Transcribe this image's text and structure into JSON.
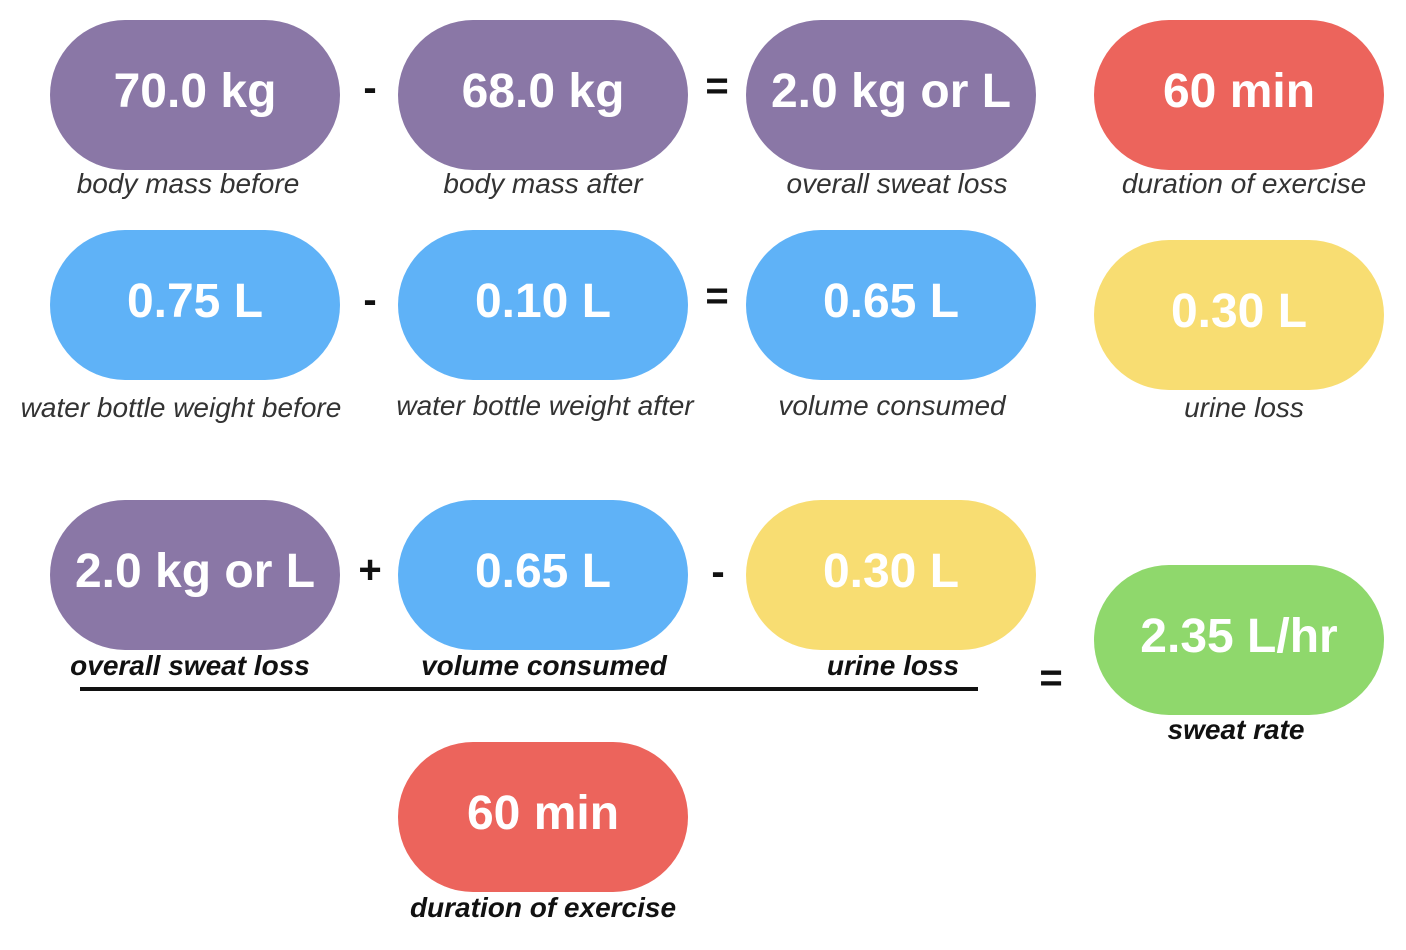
{
  "colors": {
    "mass": "#8a77a6",
    "water": "#5fb2f7",
    "urine": "#f8dd72",
    "time": "#ec645c",
    "rate": "#8fd86c"
  },
  "row1": {
    "before": {
      "value": "70.0 kg",
      "label": "body mass before"
    },
    "minus": "-",
    "after": {
      "value": "68.0 kg",
      "label": "body mass after"
    },
    "equals": "=",
    "loss": {
      "value": "2.0 kg or L",
      "label": "overall sweat loss"
    },
    "duration": {
      "value": "60 min",
      "label": "duration of exercise"
    }
  },
  "row2": {
    "before": {
      "value": "0.75 L",
      "label": "water bottle weight before"
    },
    "minus": "-",
    "after": {
      "value": "0.10 L",
      "label": "water bottle weight after"
    },
    "equals": "=",
    "consumed": {
      "value": "0.65 L",
      "label": "volume consumed"
    },
    "urine": {
      "value": "0.30 L",
      "label": "urine loss"
    }
  },
  "formula": {
    "sweat_loss": {
      "value": "2.0 kg or L",
      "label": "overall sweat loss"
    },
    "plus": "+",
    "consumed": {
      "value": "0.65 L",
      "label": "volume consumed"
    },
    "minus": "-",
    "urine": {
      "value": "0.30 L",
      "label": "urine loss"
    },
    "equals": "=",
    "duration": {
      "value": "60 min",
      "label": "duration of exercise"
    },
    "result": {
      "value": "2.35 L/hr",
      "label": "sweat rate"
    }
  }
}
